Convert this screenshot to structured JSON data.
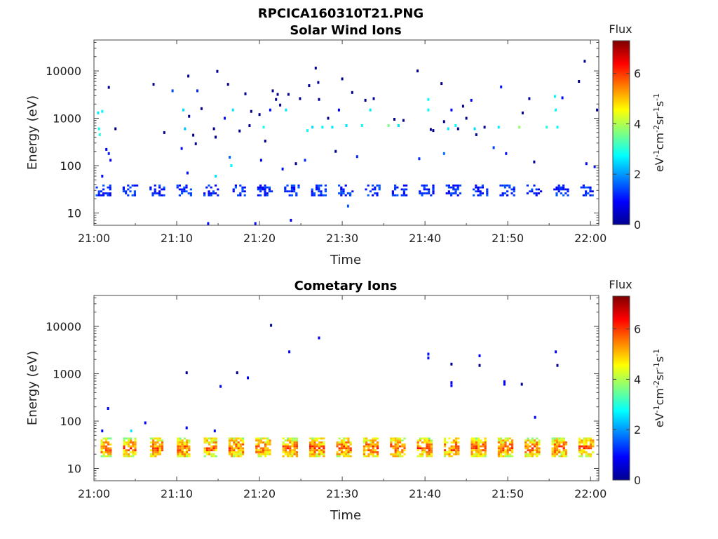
{
  "figure": {
    "title": "RPCICA160310T21.PNG"
  },
  "chart_data": [
    {
      "type": "heatmap",
      "title": "Solar Wind Ions",
      "xlabel": "Time",
      "ylabel": "Energy (eV)",
      "y_scale": "log",
      "ylim": [
        5.5,
        45000
      ],
      "xlim_minutes": [
        0,
        61
      ],
      "x_tick_labels": [
        "21:00",
        "21:10",
        "21:20",
        "21:30",
        "21:40",
        "21:50",
        "22:00"
      ],
      "y_tick_labels": [
        "10",
        "100",
        "1000",
        "10000"
      ],
      "colorbar": {
        "title": "Flux",
        "label": "eV-1cm-2sr-1s-1",
        "range": [
          0,
          7.3
        ],
        "ticks": [
          "0",
          "2",
          "4",
          "6"
        ]
      },
      "grid": false,
      "bands": [
        {
          "t_start": 0.2,
          "t_end": 61,
          "e_low": 23,
          "e_high": 40,
          "flux": 1.0,
          "density": 0.45
        }
      ],
      "scattered": [
        {
          "t": 0.5,
          "e": 1300,
          "f": 2.6
        },
        {
          "t": 0.6,
          "e": 600,
          "f": 2.8
        },
        {
          "t": 0.7,
          "e": 450,
          "f": 3.0
        },
        {
          "t": 1.0,
          "e": 1400,
          "f": 2.7
        },
        {
          "t": 1.0,
          "e": 60,
          "f": 1.0
        },
        {
          "t": 1.5,
          "e": 220,
          "f": 0.8
        },
        {
          "t": 1.8,
          "e": 4500,
          "f": 0.1
        },
        {
          "t": 1.8,
          "e": 180,
          "f": 1.1
        },
        {
          "t": 2.0,
          "e": 130,
          "f": 0.9
        },
        {
          "t": 2.6,
          "e": 600,
          "f": 0.1
        },
        {
          "t": 7.2,
          "e": 5200,
          "f": 0.1
        },
        {
          "t": 8.5,
          "e": 500,
          "f": 0.1
        },
        {
          "t": 9.5,
          "e": 3800,
          "f": 1.4
        },
        {
          "t": 10.6,
          "e": 230,
          "f": 1.0
        },
        {
          "t": 10.8,
          "e": 1500,
          "f": 2.5
        },
        {
          "t": 11.0,
          "e": 600,
          "f": 2.3
        },
        {
          "t": 11.4,
          "e": 7800,
          "f": 0.1
        },
        {
          "t": 11.5,
          "e": 1100,
          "f": 0.1
        },
        {
          "t": 11.3,
          "e": 70,
          "f": 1.0
        },
        {
          "t": 12.0,
          "e": 440,
          "f": 0.1
        },
        {
          "t": 12.3,
          "e": 290,
          "f": 0.1
        },
        {
          "t": 12.5,
          "e": 3800,
          "f": 1.2
        },
        {
          "t": 13.0,
          "e": 1600,
          "f": 0.1
        },
        {
          "t": 13.8,
          "e": 6,
          "f": 1.0
        },
        {
          "t": 14.5,
          "e": 600,
          "f": 0.1
        },
        {
          "t": 14.7,
          "e": 400,
          "f": 0.1
        },
        {
          "t": 14.7,
          "e": 60,
          "f": 2.6
        },
        {
          "t": 14.9,
          "e": 9800,
          "f": 0.1
        },
        {
          "t": 15.8,
          "e": 1000,
          "f": 1.0
        },
        {
          "t": 16.2,
          "e": 5200,
          "f": 0.1
        },
        {
          "t": 16.4,
          "e": 150,
          "f": 1.6
        },
        {
          "t": 16.6,
          "e": 100,
          "f": 2.7
        },
        {
          "t": 16.8,
          "e": 1500,
          "f": 2.6
        },
        {
          "t": 17.6,
          "e": 540,
          "f": 0.1
        },
        {
          "t": 18.3,
          "e": 3300,
          "f": 0.1
        },
        {
          "t": 19.0,
          "e": 1400,
          "f": 0.1
        },
        {
          "t": 18.8,
          "e": 700,
          "f": 0.1
        },
        {
          "t": 19.5,
          "e": 6,
          "f": 1.0
        },
        {
          "t": 20.0,
          "e": 1200,
          "f": 0.1
        },
        {
          "t": 20.2,
          "e": 130,
          "f": 0.8
        },
        {
          "t": 20.5,
          "e": 650,
          "f": 2.9
        },
        {
          "t": 20.7,
          "e": 330,
          "f": 0.1
        },
        {
          "t": 21.3,
          "e": 1500,
          "f": 1.0
        },
        {
          "t": 21.6,
          "e": 3800,
          "f": 0.1
        },
        {
          "t": 22.0,
          "e": 2500,
          "f": 0.1
        },
        {
          "t": 22.2,
          "e": 3200,
          "f": 0.1
        },
        {
          "t": 22.5,
          "e": 1900,
          "f": 0.1
        },
        {
          "t": 22.8,
          "e": 85,
          "f": 1.0
        },
        {
          "t": 23.2,
          "e": 1500,
          "f": 2.6
        },
        {
          "t": 23.5,
          "e": 3200,
          "f": 0.1
        },
        {
          "t": 23.8,
          "e": 7,
          "f": 0.8
        },
        {
          "t": 24.4,
          "e": 110,
          "f": 0.1
        },
        {
          "t": 24.9,
          "e": 2600,
          "f": 0.1
        },
        {
          "t": 25.5,
          "e": 130,
          "f": 1.2
        },
        {
          "t": 25.8,
          "e": 550,
          "f": 2.8
        },
        {
          "t": 26.0,
          "e": 4900,
          "f": 0.1
        },
        {
          "t": 26.4,
          "e": 650,
          "f": 2.5
        },
        {
          "t": 26.8,
          "e": 11500,
          "f": 0.1
        },
        {
          "t": 27.1,
          "e": 5700,
          "f": 0.1
        },
        {
          "t": 27.2,
          "e": 2500,
          "f": 0.1
        },
        {
          "t": 27.6,
          "e": 650,
          "f": 2.7
        },
        {
          "t": 28.3,
          "e": 1000,
          "f": 0.1
        },
        {
          "t": 28.8,
          "e": 650,
          "f": 2.6
        },
        {
          "t": 29.2,
          "e": 200,
          "f": 0.1
        },
        {
          "t": 29.6,
          "e": 1500,
          "f": 0.8
        },
        {
          "t": 30.0,
          "e": 6800,
          "f": 0.1
        },
        {
          "t": 30.5,
          "e": 700,
          "f": 2.5
        },
        {
          "t": 30.7,
          "e": 14,
          "f": 1.5
        },
        {
          "t": 31.2,
          "e": 3500,
          "f": 0.1
        },
        {
          "t": 31.8,
          "e": 155,
          "f": 1.2
        },
        {
          "t": 32.4,
          "e": 700,
          "f": 2.8
        },
        {
          "t": 32.8,
          "e": 2400,
          "f": 0.1
        },
        {
          "t": 33.4,
          "e": 1500,
          "f": 2.6
        },
        {
          "t": 33.8,
          "e": 2600,
          "f": 0.1
        },
        {
          "t": 35.6,
          "e": 700,
          "f": 3.6
        },
        {
          "t": 36.3,
          "e": 950,
          "f": 0.1
        },
        {
          "t": 36.8,
          "e": 700,
          "f": 2.5
        },
        {
          "t": 37.4,
          "e": 900,
          "f": 0.1
        },
        {
          "t": 39.1,
          "e": 10000,
          "f": 0.1
        },
        {
          "t": 39.3,
          "e": 140,
          "f": 1.2
        },
        {
          "t": 40.4,
          "e": 2500,
          "f": 2.7
        },
        {
          "t": 40.4,
          "e": 1500,
          "f": 2.7
        },
        {
          "t": 40.7,
          "e": 580,
          "f": 0.1
        },
        {
          "t": 41.0,
          "e": 550,
          "f": 0.1
        },
        {
          "t": 42.0,
          "e": 5400,
          "f": 0.1
        },
        {
          "t": 42.3,
          "e": 850,
          "f": 0.1
        },
        {
          "t": 42.3,
          "e": 180,
          "f": 1.7
        },
        {
          "t": 42.8,
          "e": 600,
          "f": 2.6
        },
        {
          "t": 43.2,
          "e": 1500,
          "f": 1.0
        },
        {
          "t": 43.7,
          "e": 700,
          "f": 2.7
        },
        {
          "t": 44.0,
          "e": 600,
          "f": 0.1
        },
        {
          "t": 44.6,
          "e": 1800,
          "f": 0.1
        },
        {
          "t": 45.0,
          "e": 1000,
          "f": 0.1
        },
        {
          "t": 45.6,
          "e": 2400,
          "f": 1.0
        },
        {
          "t": 46.0,
          "e": 600,
          "f": 2.5
        },
        {
          "t": 46.2,
          "e": 450,
          "f": 0.1
        },
        {
          "t": 47.2,
          "e": 650,
          "f": 0.1
        },
        {
          "t": 48.3,
          "e": 240,
          "f": 1.4
        },
        {
          "t": 48.9,
          "e": 650,
          "f": 2.6
        },
        {
          "t": 49.2,
          "e": 4600,
          "f": 1.0
        },
        {
          "t": 49.8,
          "e": 180,
          "f": 1.0
        },
        {
          "t": 51.4,
          "e": 650,
          "f": 3.8
        },
        {
          "t": 51.8,
          "e": 1300,
          "f": 0.1
        },
        {
          "t": 52.6,
          "e": 2600,
          "f": 0.1
        },
        {
          "t": 53.2,
          "e": 120,
          "f": 0.1
        },
        {
          "t": 54.7,
          "e": 650,
          "f": 3.0
        },
        {
          "t": 55.7,
          "e": 2900,
          "f": 2.7
        },
        {
          "t": 55.8,
          "e": 1500,
          "f": 2.7
        },
        {
          "t": 56.0,
          "e": 650,
          "f": 2.7
        },
        {
          "t": 56.6,
          "e": 2700,
          "f": 1.0
        },
        {
          "t": 58.6,
          "e": 6000,
          "f": 0.1
        },
        {
          "t": 59.3,
          "e": 16000,
          "f": 0.1
        },
        {
          "t": 59.5,
          "e": 110,
          "f": 1.0
        },
        {
          "t": 60.5,
          "e": 95,
          "f": 1.0
        },
        {
          "t": 60.8,
          "e": 1500,
          "f": 0.1
        }
      ]
    },
    {
      "type": "heatmap",
      "title": "Cometary Ions",
      "xlabel": "Time",
      "ylabel": "Energy (eV)",
      "y_scale": "log",
      "ylim": [
        5.5,
        45000
      ],
      "xlim_minutes": [
        0,
        61
      ],
      "x_tick_labels": [
        "21:00",
        "21:10",
        "21:20",
        "21:30",
        "21:40",
        "21:50",
        "22:00"
      ],
      "y_tick_labels": [
        "10",
        "100",
        "1000",
        "10000"
      ],
      "colorbar": {
        "title": "Flux",
        "label": "eV-1cm-2sr-1s-1",
        "range": [
          0,
          7.3
        ],
        "ticks": [
          "0",
          "2",
          "4",
          "6"
        ]
      },
      "grid": false,
      "bands": [
        {
          "t_start": 0.8,
          "t_end": 61,
          "e_low": 18,
          "e_high": 45,
          "flux": 4.3,
          "density": 0.8
        }
      ],
      "scattered": [
        {
          "t": 1.0,
          "e": 62,
          "f": 0.9
        },
        {
          "t": 1.7,
          "e": 185,
          "f": 0.9
        },
        {
          "t": 4.5,
          "e": 62,
          "f": 2.6
        },
        {
          "t": 6.2,
          "e": 92,
          "f": 0.9
        },
        {
          "t": 11.2,
          "e": 1050,
          "f": 0.1
        },
        {
          "t": 11.2,
          "e": 72,
          "f": 0.9
        },
        {
          "t": 14.6,
          "e": 62,
          "f": 0.9
        },
        {
          "t": 15.3,
          "e": 540,
          "f": 0.9
        },
        {
          "t": 17.3,
          "e": 1050,
          "f": 0.1
        },
        {
          "t": 18.6,
          "e": 820,
          "f": 0.9
        },
        {
          "t": 21.4,
          "e": 10500,
          "f": 0.1
        },
        {
          "t": 23.6,
          "e": 2900,
          "f": 0.9
        },
        {
          "t": 27.2,
          "e": 5700,
          "f": 0.9
        },
        {
          "t": 40.4,
          "e": 2600,
          "f": 1.0
        },
        {
          "t": 40.4,
          "e": 2150,
          "f": 1.0
        },
        {
          "t": 43.2,
          "e": 1600,
          "f": 0.1
        },
        {
          "t": 43.2,
          "e": 650,
          "f": 0.9
        },
        {
          "t": 43.2,
          "e": 560,
          "f": 0.9
        },
        {
          "t": 46.6,
          "e": 2400,
          "f": 0.9
        },
        {
          "t": 46.6,
          "e": 1500,
          "f": 0.1
        },
        {
          "t": 49.6,
          "e": 680,
          "f": 0.9
        },
        {
          "t": 49.6,
          "e": 600,
          "f": 0.9
        },
        {
          "t": 51.7,
          "e": 600,
          "f": 0.1
        },
        {
          "t": 53.3,
          "e": 120,
          "f": 0.9
        },
        {
          "t": 55.8,
          "e": 2900,
          "f": 1.0
        },
        {
          "t": 56.0,
          "e": 1500,
          "f": 0.1
        }
      ]
    }
  ]
}
